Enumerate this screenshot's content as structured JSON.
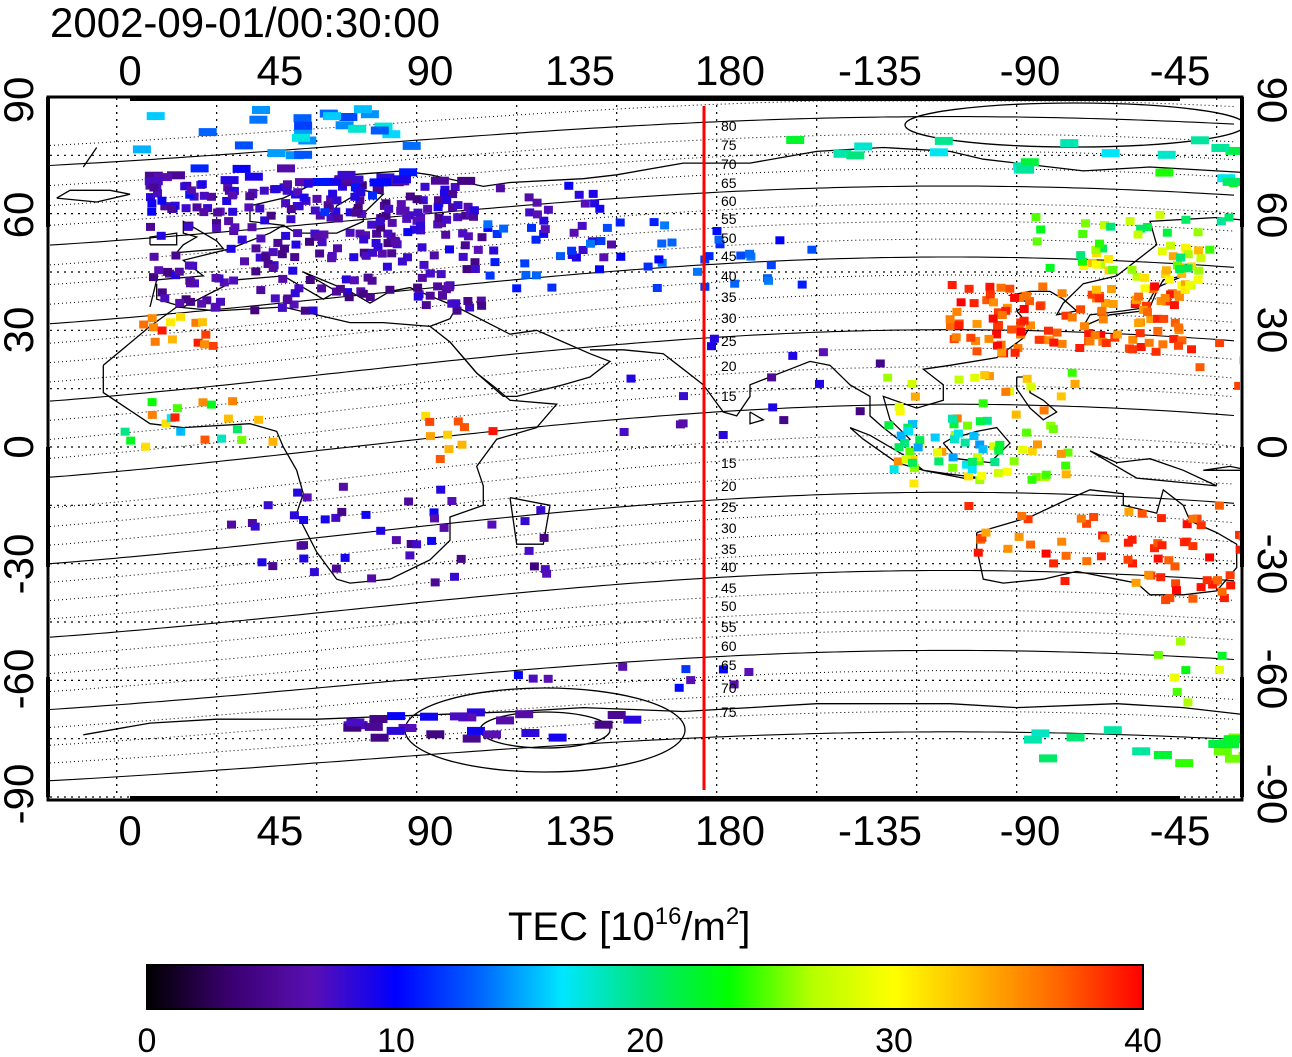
{
  "timestamp": "2002-09-01/00:30:00",
  "map": {
    "top_lon_ticks": [
      "0",
      "45",
      "90",
      "135",
      "180",
      "-135",
      "-90",
      "-45"
    ],
    "bottom_lon_ticks": [
      "0",
      "45",
      "90",
      "135",
      "180",
      "-135",
      "-90",
      "-45"
    ],
    "left_lat_ticks": [
      "90",
      "60",
      "30",
      "0",
      "-30",
      "-60",
      "-90"
    ],
    "right_lat_ticks": [
      "90",
      "60",
      "30",
      "0",
      "-30",
      "-60",
      "-90"
    ],
    "contour_labels_north": [
      "80",
      "75",
      "70",
      "65",
      "60",
      "55",
      "50",
      "45",
      "40",
      "35",
      "30",
      "25",
      "20",
      "15"
    ],
    "contour_labels_south": [
      "15",
      "20",
      "25",
      "30",
      "35",
      "40",
      "45",
      "50",
      "55",
      "60",
      "65",
      "70",
      "75"
    ],
    "meridian_line_color": "#ff0000"
  },
  "colorbar": {
    "title_prefix": "TEC  [10",
    "title_exp1": "16",
    "title_mid": "/m",
    "title_exp2": "2",
    "title_suffix": "]",
    "ticks": [
      "0",
      "10",
      "20",
      "30",
      "40"
    ],
    "colormap": [
      "#000000",
      "#3a0070",
      "#5a0fb4",
      "#0000ff",
      "#0064ff",
      "#00e6ff",
      "#00e678",
      "#00ff00",
      "#b4ff00",
      "#ffff00",
      "#ffb400",
      "#ff6400",
      "#ff0000"
    ]
  }
}
